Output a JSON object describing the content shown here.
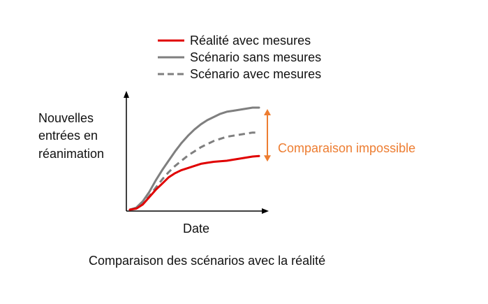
{
  "caption": "Comparaison des scénarios avec la réalité",
  "colors": {
    "reality": "#e00000",
    "scenario": "#7f7f7f",
    "annotation": "#ed7d31",
    "axis": "#000000",
    "text": "#111111"
  },
  "chart_data": {
    "type": "line",
    "title": "",
    "xlabel": "Date",
    "ylabel_lines": [
      "Nouvelles",
      "entrées en",
      "réanimation"
    ],
    "ticks": "none",
    "grid": false,
    "legend_position": "top",
    "xlim": [
      0,
      100
    ],
    "ylim": [
      0,
      100
    ],
    "x": [
      0,
      5,
      10,
      15,
      20,
      25,
      30,
      35,
      40,
      45,
      50,
      55,
      60,
      65,
      70,
      75,
      80,
      85,
      90,
      95,
      100
    ],
    "series": [
      {
        "name": "Réalité avec mesures",
        "style": "solid",
        "color": "#e00000",
        "values": [
          0,
          1,
          5,
          12,
          19,
          25,
          31,
          35,
          38,
          40,
          42,
          44,
          45,
          46,
          46.5,
          47,
          48,
          49,
          50,
          51,
          51.5
        ]
      },
      {
        "name": "Scénario sans mesures",
        "style": "solid",
        "color": "#7f7f7f",
        "values": [
          0,
          2,
          8,
          17,
          28,
          38,
          47,
          56,
          64,
          71,
          77,
          82,
          86,
          89,
          92,
          94,
          95,
          96,
          97,
          98,
          98
        ]
      },
      {
        "name": "Scénario avec mesures",
        "style": "dashed",
        "color": "#7f7f7f",
        "values": [
          0,
          1.5,
          6,
          13,
          21,
          29,
          36,
          42,
          47,
          52,
          56,
          60,
          63,
          66,
          68,
          70,
          71,
          72,
          73,
          74,
          74
        ]
      }
    ],
    "annotations": [
      {
        "text": "Comparaison impossible",
        "type": "double-arrow",
        "color": "#ed7d31",
        "y_from": 51.5,
        "y_to": 98
      }
    ]
  }
}
